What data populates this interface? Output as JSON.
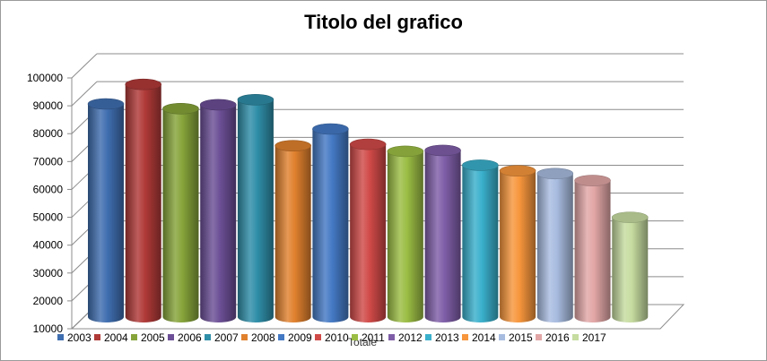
{
  "chart_data": {
    "type": "bar",
    "style": "3d-cylinder",
    "title": "Titolo del grafico",
    "categories": [
      "Totale"
    ],
    "ylim": [
      10000,
      100000
    ],
    "yticks": [
      10000,
      20000,
      30000,
      40000,
      50000,
      60000,
      70000,
      80000,
      90000,
      100000
    ],
    "grid": true,
    "legend_position": "bottom",
    "series": [
      {
        "name": "2003",
        "values": [
          86500
        ],
        "color": "#3f6eb0"
      },
      {
        "name": "2004",
        "values": [
          93500
        ],
        "color": "#b03a38"
      },
      {
        "name": "2005",
        "values": [
          84800
        ],
        "color": "#86a43a"
      },
      {
        "name": "2006",
        "values": [
          86200
        ],
        "color": "#6c4f96"
      },
      {
        "name": "2007",
        "values": [
          88000
        ],
        "color": "#2f8ea8"
      },
      {
        "name": "2008",
        "values": [
          71500
        ],
        "color": "#e0812e"
      },
      {
        "name": "2009",
        "values": [
          77500
        ],
        "color": "#4479c4"
      },
      {
        "name": "2010",
        "values": [
          72000
        ],
        "color": "#d04a48"
      },
      {
        "name": "2011",
        "values": [
          69500
        ],
        "color": "#9bbd44"
      },
      {
        "name": "2012",
        "values": [
          69800
        ],
        "color": "#7f5ea8"
      },
      {
        "name": "2013",
        "values": [
          64500
        ],
        "color": "#3ab0cc"
      },
      {
        "name": "2014",
        "values": [
          62500
        ],
        "color": "#f7963c"
      },
      {
        "name": "2015",
        "values": [
          61500
        ],
        "color": "#a8bce0"
      },
      {
        "name": "2016",
        "values": [
          59000
        ],
        "color": "#e2a6a6"
      },
      {
        "name": "2017",
        "values": [
          45800
        ],
        "color": "#c6dca0"
      }
    ]
  }
}
